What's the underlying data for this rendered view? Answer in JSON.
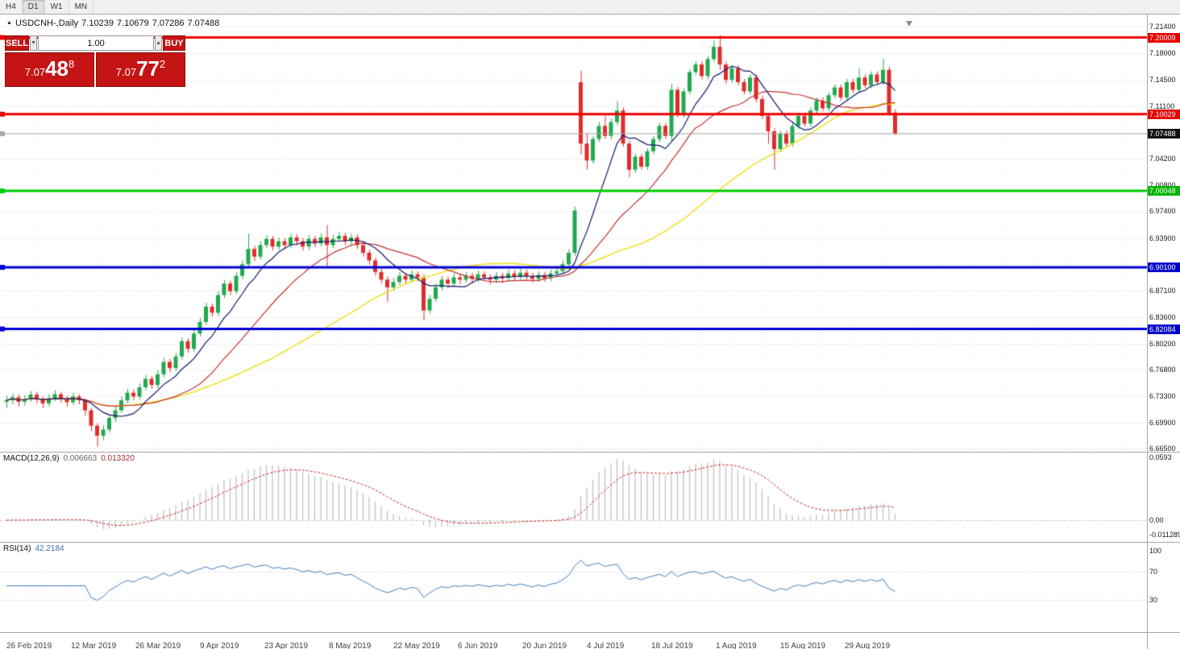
{
  "window": {
    "tabs": [
      {
        "label": "H4",
        "active": false
      },
      {
        "label": "D1",
        "active": true
      },
      {
        "label": "W1",
        "active": false
      },
      {
        "label": "MN",
        "active": false
      }
    ]
  },
  "chart_header": {
    "symbol": "USDCNH-,Daily",
    "open": "7.10239",
    "high": "7.10679",
    "low": "7.07286",
    "close": "7.07488"
  },
  "trade_panel": {
    "sell_label": "SELL",
    "buy_label": "BUY",
    "volume": "1.00",
    "spin_down_glyph": "▼",
    "spin_up_glyph": "▲",
    "sell_price_prefix": "7.07",
    "sell_price_big": "48",
    "sell_price_sup": "8",
    "buy_price_prefix": "7.07",
    "buy_price_big": "77",
    "buy_price_sup": "2"
  },
  "macd_panel": {
    "title": "MACD(12,26,9)",
    "value_main": "0.006663",
    "value_signal": "0.013320",
    "axis": {
      "top": "0.0593",
      "zero": "0.00",
      "bottom": "-0.011289"
    },
    "params": {
      "fast": 12,
      "slow": 26,
      "signal": 9
    }
  },
  "rsi_panel": {
    "title": "RSI(14)",
    "value": "42.2184",
    "axis": {
      "top": "100",
      "upper": "70",
      "lower": "30"
    },
    "period": 14,
    "levels": [
      70,
      30
    ]
  },
  "chart_data": {
    "type": "candlestick",
    "symbol": "USDCNH",
    "timeframe": "Daily",
    "colors": {
      "up": "#22a94e",
      "down": "#e22b2b",
      "ma_fast": "#12166e",
      "ma_mid": "#c43030",
      "ma_slow": "#efe01c",
      "macd_bar": "#bdbdbd",
      "macd_signal": "#cc2929",
      "rsi_line": "#3f7cc0"
    },
    "price_axis": {
      "ticks": [
        "7.21400",
        "7.18000",
        "7.14500",
        "7.11100",
        "7.04200",
        "7.00800",
        "6.97400",
        "6.93900",
        "6.87100",
        "6.83600",
        "6.80200",
        "6.76800",
        "6.73300",
        "6.69900",
        "6.66500"
      ],
      "badges": [
        {
          "label": "7.20009",
          "color": "#e60000"
        },
        {
          "label": "7.10029",
          "color": "#e60000"
        },
        {
          "label": "7.07488",
          "color": "#111111"
        },
        {
          "label": "7.00048",
          "color": "#00b400"
        },
        {
          "label": "6.90100",
          "color": "#0000cc"
        },
        {
          "label": "6.82084",
          "color": "#0000cc"
        }
      ]
    },
    "hlines": [
      {
        "price": 7.20009,
        "color": "#ee0000",
        "width": 3
      },
      {
        "price": 7.10029,
        "color": "#ee0000",
        "width": 3
      },
      {
        "price": 7.00048,
        "color": "#00cc00",
        "width": 3
      },
      {
        "price": 6.901,
        "color": "#0000d6",
        "width": 3
      },
      {
        "price": 6.82084,
        "color": "#0000d6",
        "width": 3
      },
      {
        "price": 7.07488,
        "color": "#a6a6a6",
        "width": 1
      }
    ],
    "current_price": 7.07488,
    "moving_averages": [
      {
        "period": 8,
        "color": "#12166e",
        "width": 1.2
      },
      {
        "period": 20,
        "color": "#c43030",
        "width": 1.2
      },
      {
        "period": 45,
        "color": "#efe01c",
        "width": 1.5
      }
    ],
    "time_axis_ticks": [
      "26 Feb 2019",
      "12 Mar 2019",
      "26 Mar 2019",
      "9 Apr 2019",
      "23 Apr 2019",
      "8 May 2019",
      "22 May 2019",
      "6 Jun 2019",
      "20 Jun 2019",
      "4 Jul 2019",
      "18 Jul 2019",
      "1 Aug 2019",
      "15 Aug 2019",
      "29 Aug 2019"
    ],
    "candles": [
      [
        6.726,
        6.734,
        6.718,
        6.728
      ],
      [
        6.728,
        6.737,
        6.723,
        6.732
      ],
      [
        6.732,
        6.736,
        6.72,
        6.726
      ],
      [
        6.726,
        6.735,
        6.721,
        6.73
      ],
      [
        6.73,
        6.74,
        6.726,
        6.7355
      ],
      [
        6.7355,
        6.739,
        6.724,
        6.729
      ],
      [
        6.729,
        6.733,
        6.718,
        6.724
      ],
      [
        6.724,
        6.736,
        6.72,
        6.731
      ],
      [
        6.731,
        6.741,
        6.727,
        6.736
      ],
      [
        6.736,
        6.739,
        6.725,
        6.73
      ],
      [
        6.73,
        6.734,
        6.72,
        6.7255
      ],
      [
        6.7255,
        6.738,
        6.722,
        6.733
      ],
      [
        6.733,
        6.736,
        6.723,
        6.728
      ],
      [
        6.728,
        6.73,
        6.708,
        6.715
      ],
      [
        6.715,
        6.718,
        6.688,
        6.695
      ],
      [
        6.695,
        6.698,
        6.668,
        6.682
      ],
      [
        6.682,
        6.696,
        6.676,
        6.69
      ],
      [
        6.69,
        6.709,
        6.686,
        6.705
      ],
      [
        6.705,
        6.72,
        6.7,
        6.715
      ],
      [
        6.715,
        6.733,
        6.711,
        6.728
      ],
      [
        6.728,
        6.743,
        6.724,
        6.738
      ],
      [
        6.738,
        6.742,
        6.728,
        6.733
      ],
      [
        6.733,
        6.75,
        6.729,
        6.745
      ],
      [
        6.745,
        6.761,
        6.741,
        6.756
      ],
      [
        6.756,
        6.76,
        6.743,
        6.748
      ],
      [
        6.748,
        6.767,
        6.744,
        6.762
      ],
      [
        6.762,
        6.783,
        6.758,
        6.778
      ],
      [
        6.778,
        6.782,
        6.765,
        6.77
      ],
      [
        6.77,
        6.79,
        6.766,
        6.785
      ],
      [
        6.785,
        6.81,
        6.781,
        6.805
      ],
      [
        6.805,
        6.809,
        6.79,
        6.795
      ],
      [
        6.795,
        6.82,
        6.791,
        6.815
      ],
      [
        6.815,
        6.835,
        6.811,
        6.83
      ],
      [
        6.83,
        6.855,
        6.826,
        6.85
      ],
      [
        6.85,
        6.854,
        6.837,
        6.842
      ],
      [
        6.842,
        6.87,
        6.838,
        6.865
      ],
      [
        6.865,
        6.885,
        6.861,
        6.88
      ],
      [
        6.88,
        6.884,
        6.865,
        6.87
      ],
      [
        6.87,
        6.895,
        6.866,
        6.89
      ],
      [
        6.89,
        6.91,
        6.886,
        6.905
      ],
      [
        6.905,
        6.945,
        6.901,
        6.925
      ],
      [
        6.925,
        6.929,
        6.909,
        6.915
      ],
      [
        6.915,
        6.935,
        6.911,
        6.93
      ],
      [
        6.93,
        6.943,
        6.926,
        6.938
      ],
      [
        6.938,
        6.942,
        6.923,
        6.928
      ],
      [
        6.928,
        6.94,
        6.924,
        6.935
      ],
      [
        6.935,
        6.939,
        6.925,
        6.93
      ],
      [
        6.93,
        6.945,
        6.926,
        6.94
      ],
      [
        6.94,
        6.944,
        6.93,
        6.935
      ],
      [
        6.935,
        6.939,
        6.923,
        6.928
      ],
      [
        6.928,
        6.943,
        6.924,
        6.938
      ],
      [
        6.938,
        6.942,
        6.927,
        6.932
      ],
      [
        6.932,
        6.945,
        6.928,
        6.94
      ],
      [
        6.94,
        6.956,
        6.903,
        6.93
      ],
      [
        6.93,
        6.943,
        6.926,
        6.938
      ],
      [
        6.938,
        6.947,
        6.934,
        6.942
      ],
      [
        6.942,
        6.946,
        6.93,
        6.935
      ],
      [
        6.935,
        6.945,
        6.931,
        6.94
      ],
      [
        6.94,
        6.944,
        6.925,
        6.93
      ],
      [
        6.93,
        6.934,
        6.915,
        6.92
      ],
      [
        6.92,
        6.924,
        6.905,
        6.91
      ],
      [
        6.91,
        6.914,
        6.89,
        6.895
      ],
      [
        6.895,
        6.899,
        6.88,
        6.885
      ],
      [
        6.885,
        6.889,
        6.856,
        6.875
      ],
      [
        6.875,
        6.887,
        6.871,
        6.882
      ],
      [
        6.882,
        6.895,
        6.878,
        6.89
      ],
      [
        6.89,
        6.894,
        6.88,
        6.885
      ],
      [
        6.885,
        6.897,
        6.881,
        6.892
      ],
      [
        6.892,
        6.896,
        6.883,
        6.888
      ],
      [
        6.888,
        6.892,
        6.832,
        6.845
      ],
      [
        6.845,
        6.865,
        6.841,
        6.86
      ],
      [
        6.86,
        6.88,
        6.856,
        6.875
      ],
      [
        6.875,
        6.89,
        6.871,
        6.885
      ],
      [
        6.885,
        6.889,
        6.874,
        6.88
      ],
      [
        6.88,
        6.893,
        6.876,
        6.888
      ],
      [
        6.888,
        6.892,
        6.879,
        6.885
      ],
      [
        6.885,
        6.895,
        6.881,
        6.89
      ],
      [
        6.89,
        6.894,
        6.88,
        6.886
      ],
      [
        6.886,
        6.897,
        6.882,
        6.892
      ],
      [
        6.892,
        6.896,
        6.883,
        6.888
      ],
      [
        6.888,
        6.892,
        6.879,
        6.885
      ],
      [
        6.885,
        6.895,
        6.881,
        6.89
      ],
      [
        6.89,
        6.894,
        6.881,
        6.887
      ],
      [
        6.887,
        6.898,
        6.883,
        6.893
      ],
      [
        6.893,
        6.897,
        6.884,
        6.889
      ],
      [
        6.889,
        6.899,
        6.885,
        6.894
      ],
      [
        6.894,
        6.898,
        6.885,
        6.89
      ],
      [
        6.89,
        6.894,
        6.881,
        6.886
      ],
      [
        6.886,
        6.896,
        6.882,
        6.891
      ],
      [
        6.891,
        6.895,
        6.882,
        6.887
      ],
      [
        6.887,
        6.898,
        6.883,
        6.893
      ],
      [
        6.893,
        6.901,
        6.889,
        6.896
      ],
      [
        6.896,
        6.91,
        6.892,
        6.905
      ],
      [
        6.905,
        6.925,
        6.901,
        6.92
      ],
      [
        6.92,
        6.98,
        6.916,
        6.975
      ],
      [
        7.142,
        7.157,
        7.048,
        7.062
      ],
      [
        7.062,
        7.075,
        7.028,
        7.04
      ],
      [
        7.04,
        7.072,
        7.036,
        7.068
      ],
      [
        7.068,
        7.09,
        7.064,
        7.085
      ],
      [
        7.085,
        7.098,
        7.068,
        7.072
      ],
      [
        7.072,
        7.094,
        7.068,
        7.09
      ],
      [
        7.09,
        7.117,
        7.086,
        7.105
      ],
      [
        7.105,
        7.109,
        7.058,
        7.062
      ],
      [
        7.062,
        7.066,
        7.018,
        7.028
      ],
      [
        7.028,
        7.049,
        7.024,
        7.045
      ],
      [
        7.045,
        7.049,
        7.028,
        7.032
      ],
      [
        7.032,
        7.056,
        7.028,
        7.052
      ],
      [
        7.052,
        7.072,
        7.048,
        7.068
      ],
      [
        7.068,
        7.089,
        7.064,
        7.085
      ],
      [
        7.085,
        7.089,
        7.068,
        7.072
      ],
      [
        7.072,
        7.14,
        7.065,
        7.132
      ],
      [
        7.132,
        7.136,
        7.096,
        7.1
      ],
      [
        7.1,
        7.134,
        7.096,
        7.13
      ],
      [
        7.13,
        7.159,
        7.126,
        7.155
      ],
      [
        7.155,
        7.169,
        7.151,
        7.165
      ],
      [
        7.165,
        7.169,
        7.146,
        7.15
      ],
      [
        7.15,
        7.176,
        7.146,
        7.172
      ],
      [
        7.172,
        7.196,
        7.168,
        7.188
      ],
      [
        7.188,
        7.203,
        7.158,
        7.165
      ],
      [
        7.165,
        7.169,
        7.14,
        7.145
      ],
      [
        7.145,
        7.164,
        7.141,
        7.16
      ],
      [
        7.16,
        7.164,
        7.138,
        7.142
      ],
      [
        7.142,
        7.146,
        7.126,
        7.13
      ],
      [
        7.13,
        7.152,
        7.126,
        7.148
      ],
      [
        7.148,
        7.152,
        7.116,
        7.12
      ],
      [
        7.12,
        7.124,
        7.094,
        7.098
      ],
      [
        7.098,
        7.102,
        7.062,
        7.078
      ],
      [
        7.078,
        7.082,
        7.028,
        7.055
      ],
      [
        7.055,
        7.079,
        7.051,
        7.075
      ],
      [
        7.075,
        7.079,
        7.058,
        7.062
      ],
      [
        7.062,
        7.089,
        7.058,
        7.085
      ],
      [
        7.085,
        7.102,
        7.081,
        7.098
      ],
      [
        7.098,
        7.102,
        7.084,
        7.088
      ],
      [
        7.088,
        7.109,
        7.084,
        7.105
      ],
      [
        7.105,
        7.122,
        7.101,
        7.118
      ],
      [
        7.118,
        7.122,
        7.104,
        7.108
      ],
      [
        7.108,
        7.129,
        7.104,
        7.125
      ],
      [
        7.125,
        7.139,
        7.121,
        7.135
      ],
      [
        7.135,
        7.139,
        7.118,
        7.122
      ],
      [
        7.122,
        7.146,
        7.118,
        7.142
      ],
      [
        7.142,
        7.146,
        7.128,
        7.132
      ],
      [
        7.132,
        7.16,
        7.128,
        7.148
      ],
      [
        7.148,
        7.152,
        7.134,
        7.138
      ],
      [
        7.138,
        7.156,
        7.134,
        7.152
      ],
      [
        7.152,
        7.156,
        7.138,
        7.142
      ],
      [
        7.142,
        7.172,
        7.138,
        7.158
      ],
      [
        7.158,
        7.162,
        7.099,
        7.102
      ],
      [
        7.10239,
        7.10679,
        7.07286,
        7.07488
      ]
    ]
  }
}
